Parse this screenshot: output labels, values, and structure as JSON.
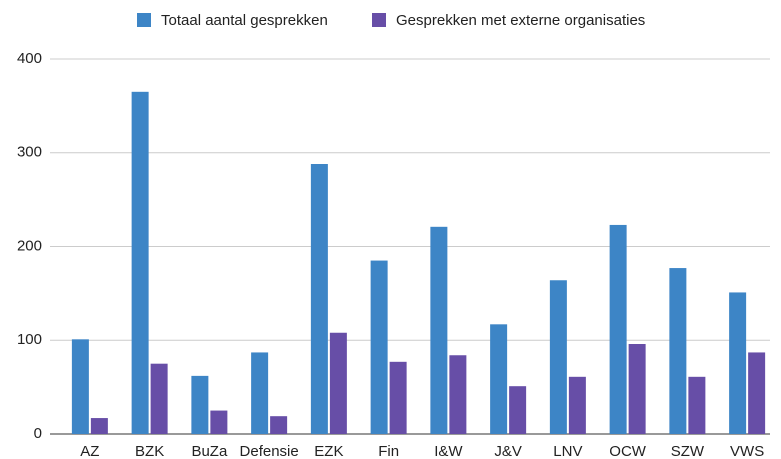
{
  "chart_data": {
    "type": "bar",
    "categories": [
      "AZ",
      "BZK",
      "BuZa",
      "Defensie",
      "EZK",
      "Fin",
      "I&W",
      "J&V",
      "LNV",
      "OCW",
      "SZW",
      "VWS"
    ],
    "series": [
      {
        "name": "Totaal aantal gesprekken",
        "color": "#3d85c6",
        "values": [
          101,
          365,
          62,
          87,
          288,
          185,
          221,
          117,
          164,
          223,
          177,
          151
        ]
      },
      {
        "name": "Gesprekken met externe organisaties",
        "color": "#674ea7",
        "values": [
          17,
          75,
          25,
          19,
          108,
          77,
          84,
          51,
          61,
          96,
          61,
          87
        ]
      }
    ],
    "ylim": [
      0,
      400
    ],
    "yticks": [
      0,
      100,
      200,
      300,
      400
    ],
    "grid": true,
    "legend": "top"
  }
}
